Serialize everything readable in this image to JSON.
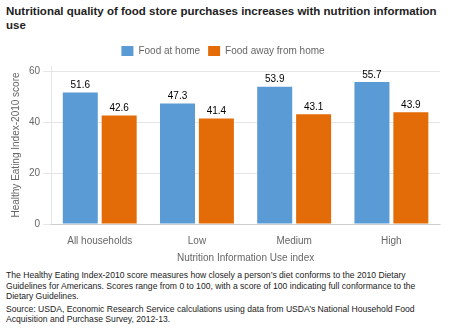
{
  "chart_data": {
    "type": "bar",
    "title": "Nutritional quality of food store purchases increases with nutrition information use",
    "ylabel": "Healthy Eating Index-2010 score",
    "xlabel": "Nutrition Information Use index",
    "categories": [
      "All households",
      "Low",
      "Medium",
      "High"
    ],
    "series": [
      {
        "name": "Food at home",
        "color": "#5B9BD5",
        "values": [
          51.6,
          47.3,
          53.9,
          55.7
        ]
      },
      {
        "name": "Food away from home",
        "color": "#E36C09",
        "values": [
          42.6,
          41.4,
          43.1,
          43.9
        ]
      }
    ],
    "ylim": [
      0,
      62
    ],
    "yticks": [
      0,
      20,
      40,
      60
    ],
    "grid": true,
    "legend": "top",
    "data_labels": true,
    "annotations": [
      "The Healthy Eating Index-2010 score measures how closely a person’s diet conforms to the 2010 Dietary Guidelines for Americans. Scores range from 0 to 100, with a score of 100 indicating full conformance to the Dietary Guidelines.",
      "Source: USDA, Economic Research Service calculations using data from USDA’s National Household Food Acquisition and Purchase Survey, 2012-13."
    ]
  }
}
